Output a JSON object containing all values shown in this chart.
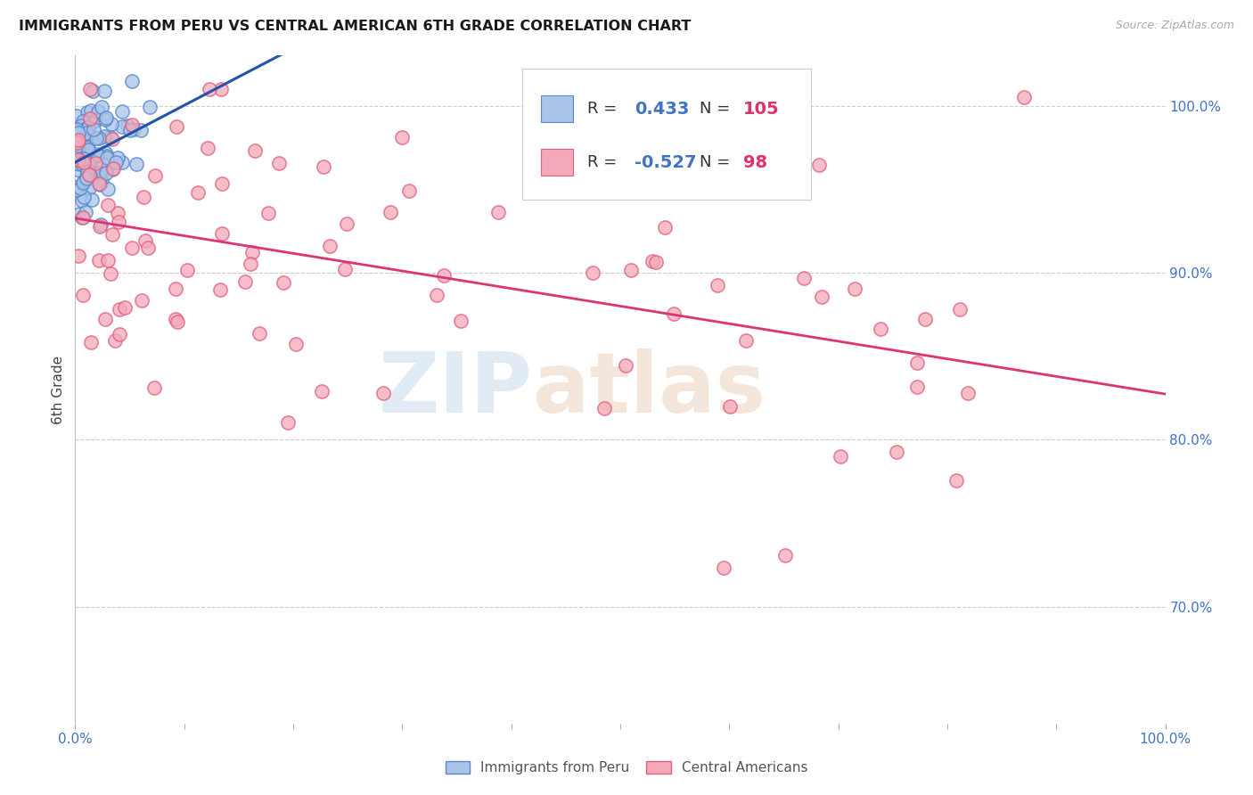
{
  "title": "IMMIGRANTS FROM PERU VS CENTRAL AMERICAN 6TH GRADE CORRELATION CHART",
  "source": "Source: ZipAtlas.com",
  "ylabel": "6th Grade",
  "legend_peru": "Immigrants from Peru",
  "legend_ca": "Central Americans",
  "r_peru": 0.433,
  "n_peru": 105,
  "r_ca": -0.527,
  "n_ca": 98,
  "color_peru_fill": "#aac4e8",
  "color_peru_edge": "#5588cc",
  "color_ca_fill": "#f4a8b8",
  "color_ca_edge": "#e06080",
  "color_line_peru": "#2255aa",
  "color_line_ca": "#dd3377",
  "color_r_value": "#4472c4",
  "color_n_value": "#dd3366",
  "color_text_dark": "#333333",
  "watermark_zip": "ZIP",
  "watermark_atlas": "atlas",
  "xlim": [
    0.0,
    1.0
  ],
  "ylim": [
    0.63,
    1.03
  ],
  "yticks": [
    0.7,
    0.8,
    0.9,
    1.0
  ],
  "ytick_labels": [
    "70.0%",
    "80.0%",
    "90.0%",
    "100.0%"
  ],
  "background_color": "#ffffff",
  "grid_color": "#cccccc"
}
